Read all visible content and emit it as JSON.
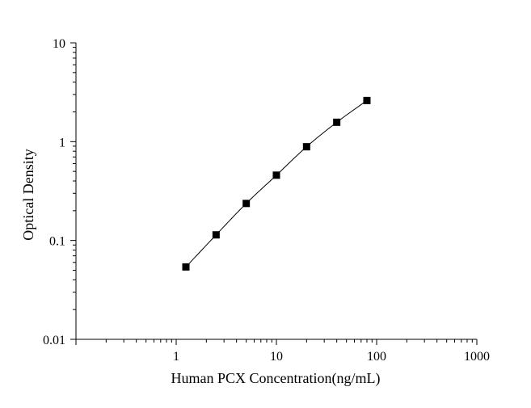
{
  "chart_data": {
    "type": "scatter",
    "title": "",
    "xlabel": "Human PCX Concentration(ng/mL)",
    "ylabel": "Optical Density",
    "x_scale": "log",
    "y_scale": "log",
    "xlim": [
      0.1,
      1000
    ],
    "ylim": [
      0.01,
      10
    ],
    "x_tick_labels": [
      "1",
      "10",
      "100",
      "1000"
    ],
    "y_tick_labels": [
      "0.01",
      "0.1",
      "1",
      "10"
    ],
    "grid": false,
    "legend": "none",
    "marker": "square",
    "series": [
      {
        "x": [
          1.25,
          2.5,
          5,
          10,
          20,
          40,
          80
        ],
        "y": [
          0.054,
          0.114,
          0.237,
          0.458,
          0.888,
          1.571,
          2.609
        ],
        "fit_curve": true
      }
    ],
    "colors": {
      "axis": "#000000",
      "marker": "#000000",
      "curve": "#000000"
    }
  }
}
